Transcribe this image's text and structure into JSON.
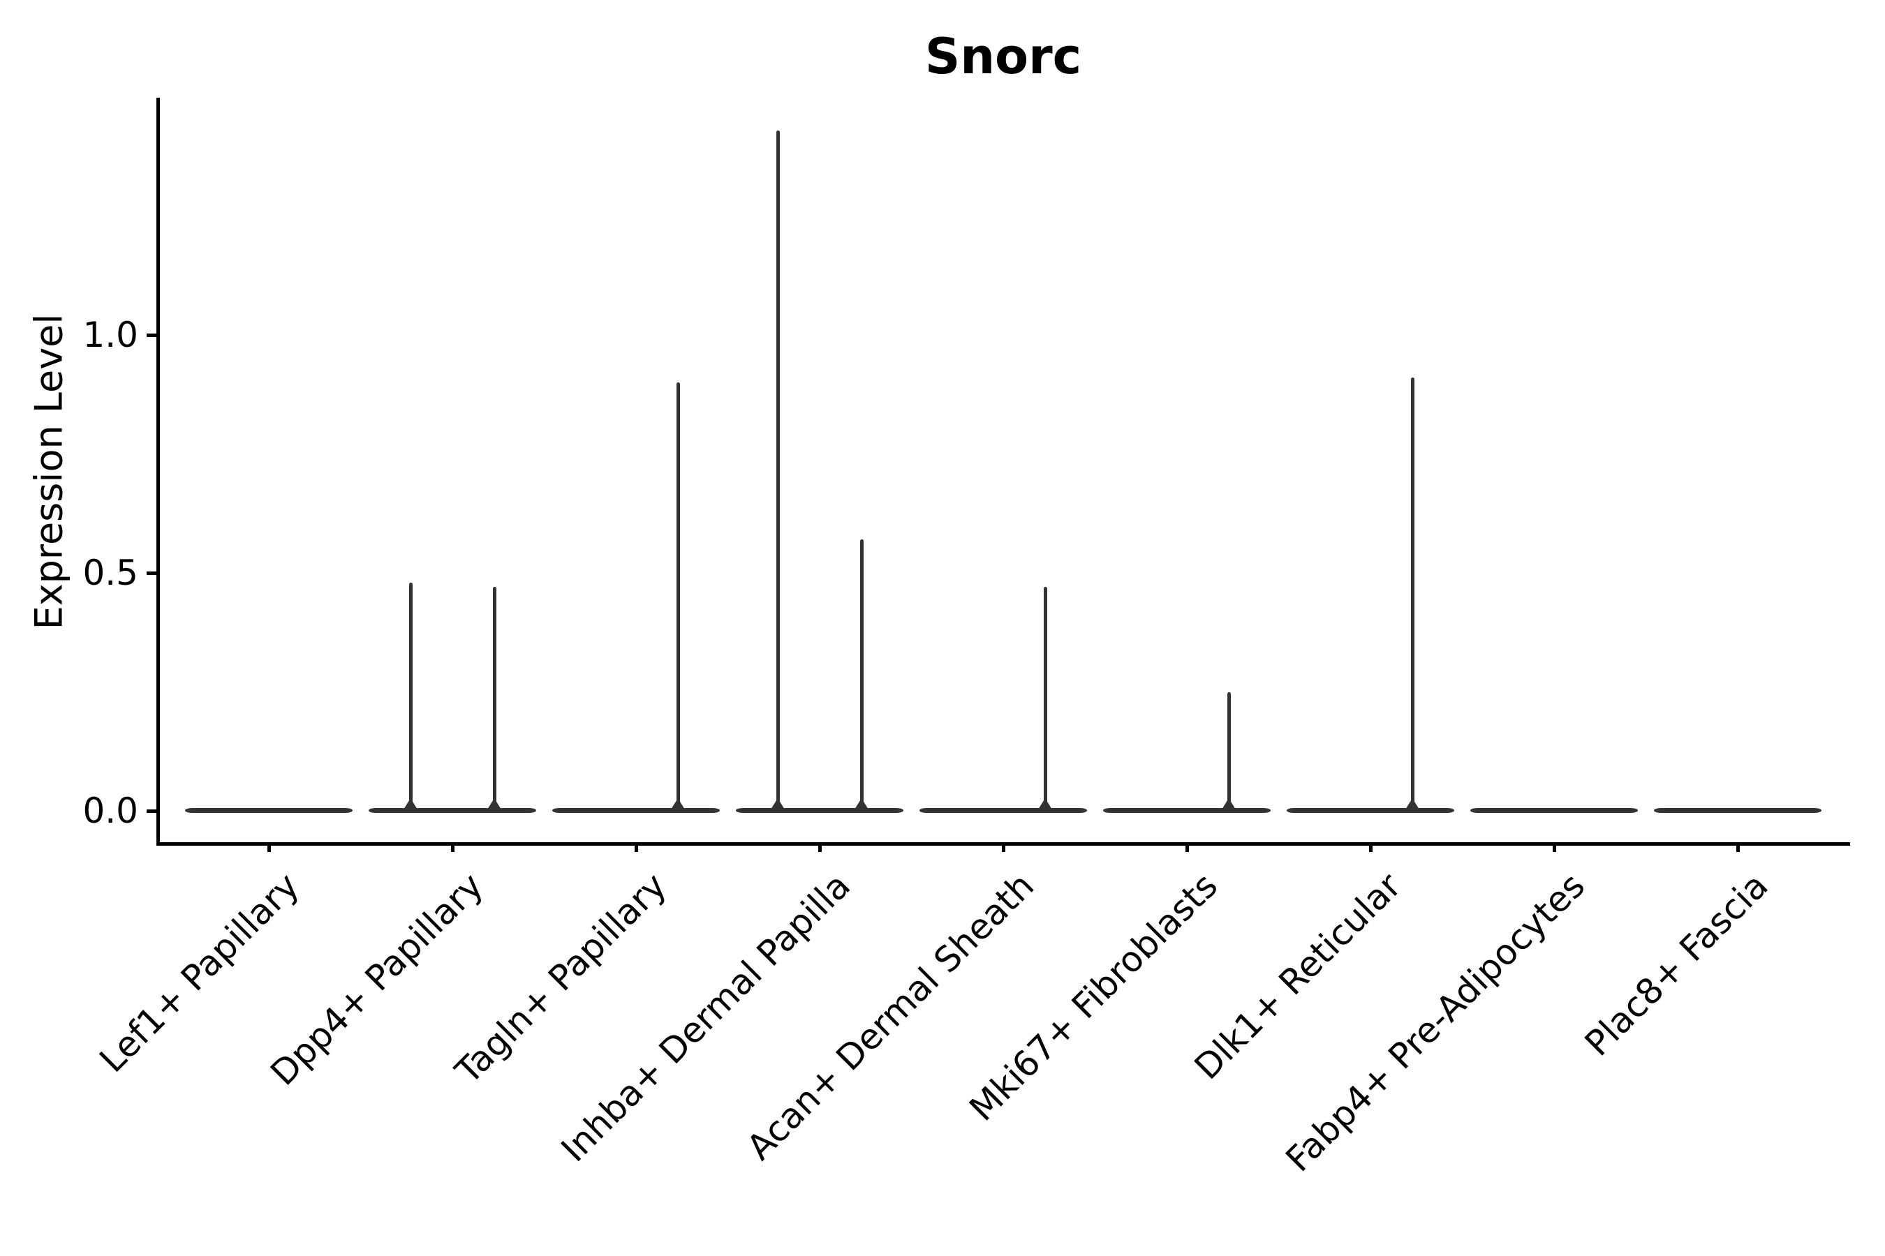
{
  "figure": {
    "title": "Snorc",
    "background": "#ffffff"
  },
  "colors": {
    "violin": "#333333",
    "axis": "#000000",
    "text": "#000000"
  },
  "y_axis": {
    "label": "Expression Level",
    "ticks": [
      {
        "label": "0.0",
        "value": 0.0
      },
      {
        "label": "0.5",
        "value": 0.5
      },
      {
        "label": "1.0",
        "value": 1.0
      }
    ]
  },
  "x_axis": {
    "tick_label_rotation_deg": 45
  },
  "chart_data": {
    "type": "violin",
    "title": "Snorc",
    "xlabel": "",
    "ylabel": "Expression Level",
    "yticks": [
      0.0,
      0.5,
      1.0
    ],
    "ylim": [
      -0.09,
      1.5
    ],
    "legend": "none",
    "grid": false,
    "description": "Expression mostly zero in all clusters: each violin is a flat bar at 0 with thin vertical density spikes up to the max expressing cells",
    "categories": [
      "Lef1+ Papillary",
      "Dpp4+ Papillary",
      "Tagln+ Papillary",
      "Inhba+ Dermal Papilla",
      "Acan+ Dermal Sheath",
      "Mki67+ Fibroblasts",
      "Dlk1+ Reticular",
      "Fabp4+ Pre-Adipocytes",
      "Plac8+ Fascia"
    ],
    "violins": [
      {
        "category": "Lef1+ Papillary",
        "baseline_value": 0.0,
        "spikes": []
      },
      {
        "category": "Dpp4+ Papillary",
        "baseline_value": 0.0,
        "spikes": [
          {
            "side": "left",
            "max": 0.48
          },
          {
            "side": "right",
            "max": 0.47
          }
        ]
      },
      {
        "category": "Tagln+ Papillary",
        "baseline_value": 0.0,
        "spikes": [
          {
            "side": "right",
            "max": 0.9
          }
        ]
      },
      {
        "category": "Inhba+ Dermal Papilla",
        "baseline_value": 0.0,
        "spikes": [
          {
            "side": "left",
            "max": 1.43
          },
          {
            "side": "right",
            "max": 0.57
          }
        ]
      },
      {
        "category": "Acan+ Dermal Sheath",
        "baseline_value": 0.0,
        "spikes": [
          {
            "side": "right",
            "max": 0.47
          }
        ]
      },
      {
        "category": "Mki67+ Fibroblasts",
        "baseline_value": 0.0,
        "spikes": [
          {
            "side": "right",
            "max": 0.25
          }
        ]
      },
      {
        "category": "Dlk1+ Reticular",
        "baseline_value": 0.0,
        "spikes": [
          {
            "side": "right",
            "max": 0.91
          }
        ]
      },
      {
        "category": "Fabp4+ Pre-Adipocytes",
        "baseline_value": 0.0,
        "spikes": []
      },
      {
        "category": "Plac8+ Fascia",
        "baseline_value": 0.0,
        "spikes": []
      }
    ]
  }
}
